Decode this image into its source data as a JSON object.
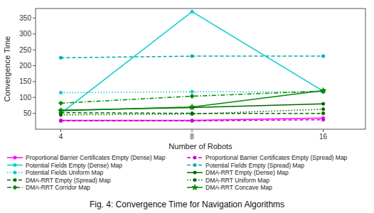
{
  "chart_data": {
    "type": "line",
    "title": "Fig. 4: Convergence Time for Navigation Algorithms",
    "x_label": "Number of Robots",
    "y_label": "Convergence Time",
    "x": [
      4,
      8,
      16
    ],
    "series": [
      {
        "name": "Proportional Barrier Certificates Empty (Dense) Map",
        "color": "#ff00ff",
        "line_style": "solid",
        "marker": "circle",
        "values": [
          28,
          28,
          35
        ]
      },
      {
        "name": "Proportional Barrier Certificates Empty (Spread) Map",
        "color": "#cc00cc",
        "line_style": "dashed",
        "marker": "circle",
        "values": [
          26,
          26,
          30
        ]
      },
      {
        "name": "Potential Fields Empty (Dense) Map",
        "color": "#00cccc",
        "line_style": "solid",
        "marker": "circle",
        "values": [
          50,
          370,
          120
        ]
      },
      {
        "name": "Potential Fields Empty (Spread) Map",
        "color": "#00aaaa",
        "line_style": "dashed",
        "marker": "circle",
        "values": [
          225,
          230,
          230
        ]
      },
      {
        "name": "Potential Fields Uniform Map",
        "color": "#00cccc",
        "line_style": "dotted",
        "marker": "circle",
        "values": [
          115,
          118,
          117
        ]
      },
      {
        "name": "DMA-RRT Empty (Dense) Map",
        "color": "#006600",
        "line_style": "solid",
        "marker": "circle",
        "values": [
          60,
          68,
          80
        ]
      },
      {
        "name": "DMA-RRT Empty (Spread) Map",
        "color": "#006600",
        "line_style": "dashed",
        "marker": "circle",
        "values": [
          52,
          50,
          50
        ]
      },
      {
        "name": "DMA-RRT Uniform Map",
        "color": "#006600",
        "line_style": "dotted",
        "marker": "circle",
        "values": [
          45,
          48,
          63
        ]
      },
      {
        "name": "DMA-RRT Corridor Map",
        "color": "#008800",
        "line_style": "dashdot",
        "marker": "diamond",
        "values": [
          82,
          104,
          120
        ]
      },
      {
        "name": "DMA-RRT Concave Map",
        "color": "#008800",
        "line_style": "solid",
        "marker": "star",
        "values": [
          58,
          70,
          122
        ]
      }
    ],
    "xlim": [
      3.5,
      20
    ],
    "xticks": [
      4,
      8,
      16
    ],
    "ylim": [
      0,
      380
    ],
    "yticks": [
      50,
      100,
      150,
      200,
      250,
      300,
      350
    ],
    "log": "x",
    "grid": false,
    "legend": "bottom"
  }
}
